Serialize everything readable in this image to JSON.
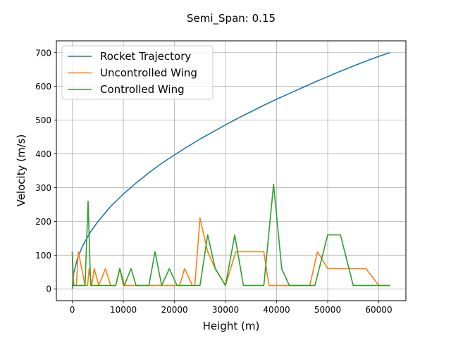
{
  "chart_data": {
    "type": "line",
    "title": "Semi_Span: 0.15",
    "xlabel": "Height (m)",
    "ylabel": "Velocity (m/s)",
    "xlim": [
      -3110,
      65310
    ],
    "ylim": [
      -35,
      735
    ],
    "xticks": [
      0,
      10000,
      20000,
      30000,
      40000,
      50000,
      60000
    ],
    "yticks": [
      0,
      100,
      200,
      300,
      400,
      500,
      600,
      700
    ],
    "grid": true,
    "legend_position": "top-left",
    "series": [
      {
        "name": "Rocket Trajectory",
        "color": "#1f77b4",
        "x": [
          0,
          250,
          1000,
          2000,
          3500,
          5000,
          7500,
          10000,
          12500,
          15000,
          17500,
          20000,
          22500,
          25000,
          27500,
          30000,
          32500,
          35000,
          37500,
          40000,
          42500,
          45000,
          47500,
          50000,
          52500,
          55000,
          57500,
          60000,
          62200
        ],
        "y": [
          0,
          45,
          89,
          126,
          167,
          199,
          244,
          281,
          314,
          344,
          372,
          397,
          421,
          444,
          465,
          486,
          506,
          525,
          544,
          562,
          579,
          596,
          613,
          629,
          645,
          660,
          675,
          689,
          700
        ]
      },
      {
        "name": "Uncontrolled Wing",
        "color": "#ff7f0e",
        "x": [
          0,
          300,
          800,
          1200,
          2500,
          3000,
          3300,
          3800,
          4300,
          5200,
          6500,
          7500,
          8500,
          9300,
          10000,
          10800,
          11200,
          12500,
          15000,
          17500,
          19500,
          21000,
          22000,
          23500,
          24000,
          25000,
          26500,
          28000,
          30000,
          31000,
          32000,
          35000,
          37500,
          38500,
          40000,
          43000,
          45000,
          46500,
          48000,
          50000,
          52500,
          55000,
          57500,
          60000,
          62200
        ],
        "y": [
          110,
          10,
          10,
          110,
          10,
          10,
          60,
          10,
          60,
          10,
          60,
          10,
          10,
          60,
          10,
          10,
          10,
          10,
          10,
          10,
          10,
          10,
          60,
          10,
          10,
          210,
          110,
          60,
          10,
          60,
          110,
          110,
          110,
          10,
          10,
          10,
          10,
          10,
          110,
          60,
          60,
          60,
          60,
          10,
          10
        ]
      },
      {
        "name": "Controlled Wing",
        "color": "#2ca02c",
        "x": [
          0,
          200,
          800,
          1200,
          2500,
          3100,
          3600,
          5000,
          7000,
          8500,
          9300,
          10200,
          11500,
          12500,
          15000,
          16200,
          17500,
          19000,
          20500,
          22000,
          24000,
          25000,
          26500,
          28000,
          30000,
          31800,
          33500,
          35000,
          37500,
          39400,
          41000,
          42500,
          45000,
          47500,
          50000,
          52500,
          55000,
          57500,
          60000,
          62200
        ],
        "y": [
          110,
          10,
          10,
          10,
          10,
          260,
          10,
          10,
          10,
          10,
          60,
          10,
          60,
          10,
          10,
          110,
          10,
          60,
          10,
          10,
          10,
          10,
          160,
          60,
          10,
          160,
          10,
          10,
          10,
          310,
          60,
          10,
          10,
          10,
          160,
          160,
          10,
          10,
          10,
          10
        ]
      }
    ]
  }
}
